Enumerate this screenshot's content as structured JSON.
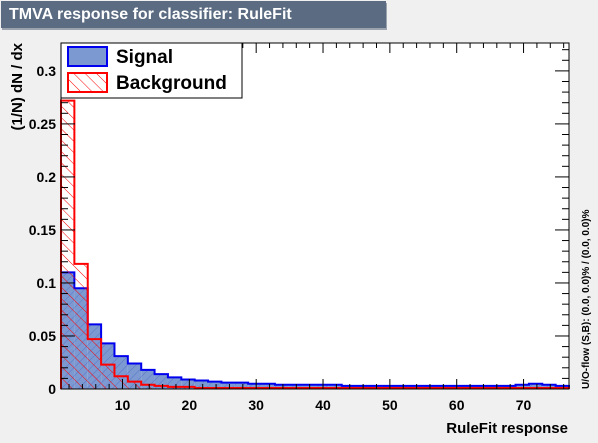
{
  "window_title": "TMVA response for classifier: RuleFit",
  "side_note": "U/O-flow (S,B): (0.0, 0.0)% / (0.0, 0.0)%",
  "chart_data": {
    "type": "histogram",
    "title": "TMVA response for classifier: RuleFit",
    "xlabel": "RuleFit response",
    "ylabel": "(1/N)  dN / dx",
    "xlim": [
      0.8,
      76.8
    ],
    "ylim": [
      0,
      0.3263
    ],
    "x_ticks": [
      10,
      20,
      30,
      40,
      50,
      60,
      70
    ],
    "y_ticks": [
      0,
      0.05,
      0.1,
      0.15,
      0.2,
      0.25,
      0.3
    ],
    "bin_width": 2,
    "bin_start": 0.8,
    "legend": {
      "placement": "top-left"
    },
    "series": [
      {
        "name": "Signal",
        "fill": "#7d99d1",
        "line": "#0000ee",
        "style": "solid",
        "values": [
          0.11,
          0.095,
          0.061,
          0.043,
          0.031,
          0.024,
          0.018,
          0.014,
          0.011,
          0.009,
          0.008,
          0.007,
          0.006,
          0.006,
          0.005,
          0.005,
          0.004,
          0.004,
          0.004,
          0.004,
          0.004,
          0.003,
          0.003,
          0.003,
          0.003,
          0.003,
          0.003,
          0.003,
          0.003,
          0.003,
          0.003,
          0.003,
          0.003,
          0.003,
          0.004,
          0.005,
          0.004,
          0.003
        ]
      },
      {
        "name": "Background",
        "fill": "none",
        "line": "#ff0000",
        "style": "hatched",
        "values": [
          0.272,
          0.118,
          0.047,
          0.023,
          0.012,
          0.007,
          0.004,
          0.003,
          0.002,
          0.002,
          0.001,
          0.001,
          0.001,
          0.001,
          0.001,
          0.001,
          0.001,
          0.001,
          0.001,
          0.001,
          0.001,
          0.001,
          0.001,
          0.001,
          0.001,
          0.001,
          0.001,
          0.001,
          0.001,
          0.001,
          0.001,
          0.001,
          0.001,
          0.001,
          0.001,
          0.001,
          0.001,
          0.001
        ]
      }
    ]
  }
}
